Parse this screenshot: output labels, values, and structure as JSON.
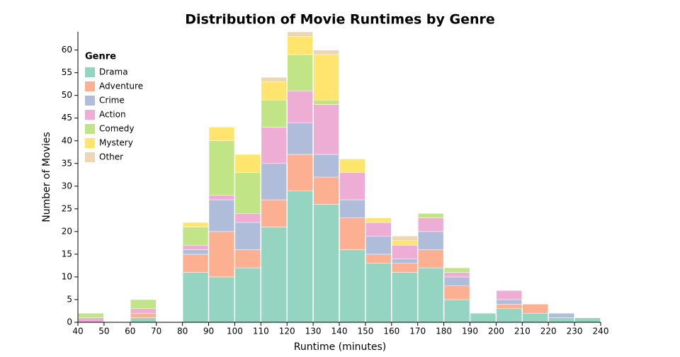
{
  "chart_data": {
    "type": "stacked_histogram",
    "title": "Distribution of Movie Runtimes by Genre",
    "x_label": "Runtime (minutes)",
    "y_label": "Number of Movies",
    "legend_title": "Genre",
    "legend_position": "top-left",
    "bins": [
      40,
      50,
      60,
      70,
      80,
      90,
      100,
      110,
      120,
      130,
      140,
      150,
      160,
      170,
      180,
      190,
      200,
      210,
      220,
      230,
      240
    ],
    "series": [
      {
        "name": "Drama",
        "color": "#66c2a5",
        "values": [
          0,
          0,
          1,
          0,
          11,
          10,
          12,
          21,
          29,
          26,
          16,
          13,
          11,
          12,
          5,
          2,
          3,
          2,
          1,
          1
        ]
      },
      {
        "name": "Adventure",
        "color": "#fc8d62",
        "values": [
          0,
          0,
          1,
          0,
          4,
          10,
          4,
          6,
          8,
          6,
          7,
          2,
          2,
          4,
          3,
          0,
          1,
          2,
          0,
          0
        ]
      },
      {
        "name": "Crime",
        "color": "#8da0cb",
        "values": [
          0,
          0,
          0,
          0,
          1,
          7,
          6,
          8,
          7,
          5,
          4,
          4,
          1,
          4,
          2,
          0,
          1,
          0,
          1,
          0
        ]
      },
      {
        "name": "Action",
        "color": "#e78ac3",
        "values": [
          1,
          0,
          1,
          0,
          1,
          1,
          2,
          8,
          7,
          11,
          6,
          3,
          3,
          3,
          1,
          0,
          2,
          0,
          0,
          0
        ]
      },
      {
        "name": "Comedy",
        "color": "#a6d854",
        "values": [
          1,
          0,
          2,
          0,
          4,
          12,
          9,
          6,
          8,
          1,
          0,
          0,
          0,
          1,
          1,
          0,
          0,
          0,
          0,
          0
        ]
      },
      {
        "name": "Mystery",
        "color": "#ffd92f",
        "values": [
          0,
          0,
          0,
          0,
          1,
          3,
          4,
          4,
          4,
          10,
          3,
          1,
          1,
          0,
          0,
          0,
          0,
          0,
          0,
          0
        ]
      },
      {
        "name": "Other",
        "color": "#e5c494",
        "values": [
          0,
          0,
          0,
          0,
          0,
          0,
          0,
          1,
          1,
          1,
          0,
          0,
          1,
          0,
          0,
          0,
          0,
          0,
          0,
          0
        ]
      }
    ],
    "opacity": 0.7,
    "xlim": [
      40,
      240
    ],
    "xticks": [
      40,
      50,
      60,
      70,
      80,
      90,
      100,
      110,
      120,
      130,
      140,
      150,
      160,
      170,
      180,
      190,
      200,
      210,
      220,
      230,
      240
    ],
    "ylim": [
      0,
      64
    ],
    "yticks": [
      0,
      5,
      10,
      15,
      20,
      25,
      30,
      35,
      40,
      45,
      50,
      55,
      60
    ]
  }
}
